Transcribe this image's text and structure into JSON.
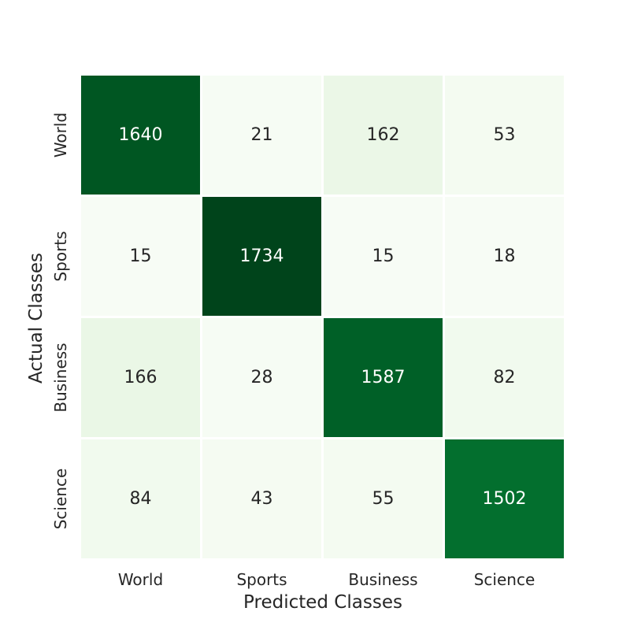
{
  "chart_data": {
    "type": "heatmap",
    "title": "",
    "xlabel": "Predicted Classes",
    "ylabel": "Actual Classes",
    "x_categories": [
      "World",
      "Sports",
      "Business",
      "Science"
    ],
    "y_categories": [
      "World",
      "Sports",
      "Business",
      "Science"
    ],
    "values": [
      [
        1640,
        21,
        162,
        53
      ],
      [
        15,
        1734,
        15,
        18
      ],
      [
        166,
        28,
        1587,
        82
      ],
      [
        84,
        43,
        55,
        1502
      ]
    ],
    "colormap": "Greens",
    "value_range": [
      15,
      1734
    ],
    "grid": false,
    "legend": "none"
  }
}
